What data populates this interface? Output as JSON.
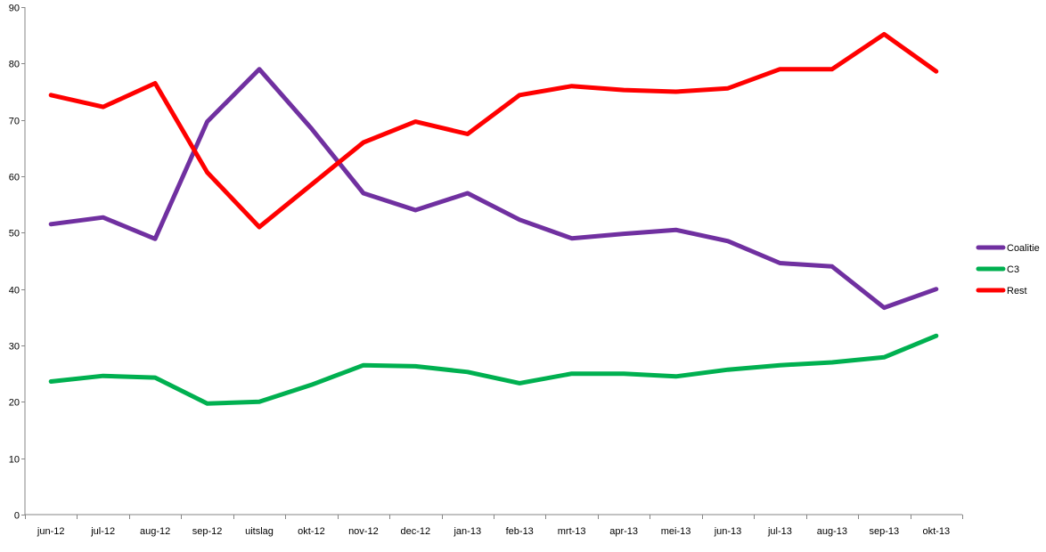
{
  "chart_data": {
    "type": "line",
    "title": "",
    "xlabel": "",
    "ylabel": "",
    "ylim": [
      0,
      90
    ],
    "yticks": [
      0,
      10,
      20,
      30,
      40,
      50,
      60,
      70,
      80,
      90
    ],
    "grid": false,
    "legend_position": "right",
    "categories": [
      "jun-12",
      "jul-12",
      "aug-12",
      "sep-12",
      "uitslag",
      "okt-12",
      "nov-12",
      "dec-12",
      "jan-13",
      "feb-13",
      "mrt-13",
      "apr-13",
      "mei-13",
      "jun-13",
      "jul-13",
      "aug-13",
      "sep-13",
      "okt-13"
    ],
    "series": [
      {
        "name": "Coalitie",
        "color": "#7030A0",
        "values": [
          51.5,
          52.7,
          48.9,
          69.7,
          79,
          68.5,
          57,
          54,
          57,
          52.3,
          49,
          49.8,
          50.5,
          48.5,
          44.6,
          44,
          36.7,
          40
        ]
      },
      {
        "name": "C3",
        "color": "#00B050",
        "values": [
          23.6,
          24.6,
          24.3,
          19.7,
          20,
          23,
          26.5,
          26.3,
          25.3,
          23.3,
          25,
          25,
          24.5,
          25.7,
          26.5,
          27,
          27.9,
          31.7
        ]
      },
      {
        "name": "Rest",
        "color": "#FF0000",
        "values": [
          74.4,
          72.3,
          76.5,
          60.7,
          51,
          58.5,
          66,
          69.7,
          67.5,
          74.4,
          76,
          75.3,
          75,
          75.6,
          79,
          79,
          85.2,
          78.6
        ]
      }
    ]
  }
}
